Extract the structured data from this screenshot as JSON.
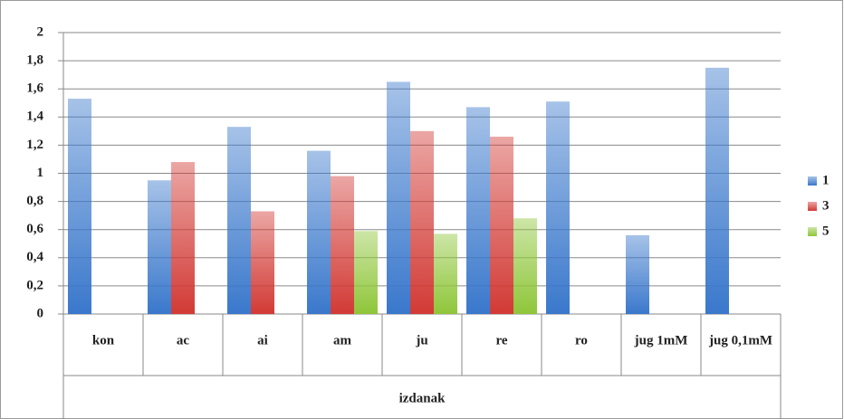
{
  "chart_data": {
    "type": "bar",
    "xlabel": "izdanak",
    "categories": [
      "kon",
      "ac",
      "ai",
      "am",
      "ju",
      "re",
      "ro",
      "jug 1mM",
      "jug 0,1mM"
    ],
    "series": [
      {
        "name": "1",
        "color": "#3a78cc",
        "values": [
          1.53,
          0.95,
          1.33,
          1.16,
          1.65,
          1.47,
          1.51,
          0.56,
          1.75
        ]
      },
      {
        "name": "3",
        "color": "#d23a35",
        "values": [
          null,
          1.08,
          0.73,
          0.98,
          1.3,
          1.26,
          null,
          null,
          null
        ]
      },
      {
        "name": "5",
        "color": "#8fc63a",
        "values": [
          null,
          null,
          null,
          0.59,
          0.57,
          0.68,
          null,
          null,
          null
        ]
      }
    ],
    "ylim": [
      0,
      2
    ],
    "yticks": [
      0,
      {
        "value": 0.2,
        "label": "0,2"
      },
      {
        "value": 0.4,
        "label": "0,4"
      },
      {
        "value": 0.6,
        "label": "0,6"
      },
      {
        "value": 0.8,
        "label": "0,8"
      },
      1,
      {
        "value": 1.2,
        "label": "1,2"
      },
      {
        "value": 1.4,
        "label": "1,4"
      },
      {
        "value": 1.6,
        "label": "1,6"
      },
      {
        "value": 1.8,
        "label": "1,8"
      },
      2
    ],
    "grid": true,
    "legend": "right"
  }
}
